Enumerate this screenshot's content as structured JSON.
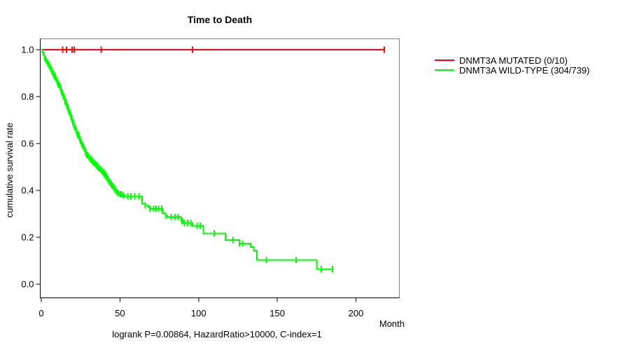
{
  "title": "Time to Death",
  "xlabel": "Month",
  "ylabel": "cumulative survival rate",
  "caption": "logrank P=0.00864, HazardRatio>10000, C-index=1",
  "colors": {
    "mutated": "#ff0000",
    "wild_type": "#00ff00",
    "axis": "#000000",
    "box": "#808080",
    "background": "#ffffff"
  },
  "legend": [
    {
      "label": "DNMT3A MUTATED (0/10)",
      "color": "#ff0000"
    },
    {
      "label": "DNMT3A WILD-TYPE (304/739)",
      "color": "#00ff00"
    }
  ],
  "chart_data": {
    "type": "line",
    "subtype": "kaplan-meier-step",
    "title": "Time to Death",
    "xlabel": "Month",
    "ylabel": "cumulative survival rate",
    "xlim": [
      0,
      227
    ],
    "ylim": [
      0,
      1.0
    ],
    "x_ticks": [
      0,
      50,
      100,
      150,
      200
    ],
    "x_tick_labels": [
      "0",
      "50",
      "100",
      "150",
      "200"
    ],
    "y_ticks": [
      0.0,
      0.2,
      0.4,
      0.6,
      0.8,
      1.0
    ],
    "y_tick_labels": [
      "0.0",
      "0.2",
      "0.4",
      "0.6",
      "0.8",
      "1.0"
    ],
    "grid": false,
    "legend_position": "right-outside",
    "series": [
      {
        "name": "DNMT3A MUTATED (0/10)",
        "color": "#ff0000",
        "events": "0/10",
        "points": [
          [
            0,
            1.0
          ],
          [
            218,
            1.0
          ]
        ],
        "censor_marks": [
          13.5,
          16,
          19.5,
          21,
          38,
          96,
          218
        ]
      },
      {
        "name": "DNMT3A WILD-TYPE (304/739)",
        "color": "#00ff00",
        "events": "304/739",
        "points": [
          [
            0,
            1
          ],
          [
            0.7,
            0.988
          ],
          [
            1.4,
            0.978
          ],
          [
            2,
            0.968
          ],
          [
            2.6,
            0.96
          ],
          [
            3.2,
            0.952
          ],
          [
            3.8,
            0.944
          ],
          [
            4.4,
            0.937
          ],
          [
            5,
            0.93
          ],
          [
            5.6,
            0.922
          ],
          [
            6.2,
            0.914
          ],
          [
            6.8,
            0.906
          ],
          [
            7.4,
            0.898
          ],
          [
            8,
            0.89
          ],
          [
            8.6,
            0.882
          ],
          [
            9.2,
            0.874
          ],
          [
            9.8,
            0.866
          ],
          [
            10.4,
            0.858
          ],
          [
            11,
            0.849
          ],
          [
            11.6,
            0.84
          ],
          [
            12.2,
            0.83
          ],
          [
            12.8,
            0.82
          ],
          [
            13.4,
            0.81
          ],
          [
            14,
            0.8
          ],
          [
            14.6,
            0.789
          ],
          [
            15.2,
            0.778
          ],
          [
            15.8,
            0.767
          ],
          [
            16.4,
            0.756
          ],
          [
            17,
            0.745
          ],
          [
            17.6,
            0.734
          ],
          [
            18.2,
            0.723
          ],
          [
            18.8,
            0.712
          ],
          [
            19.4,
            0.701
          ],
          [
            20,
            0.69
          ],
          [
            20.6,
            0.679
          ],
          [
            21.2,
            0.668
          ],
          [
            21.8,
            0.658
          ],
          [
            22.4,
            0.648
          ],
          [
            23,
            0.638
          ],
          [
            23.6,
            0.628
          ],
          [
            24.2,
            0.619
          ],
          [
            24.8,
            0.61
          ],
          [
            25.4,
            0.601
          ],
          [
            26,
            0.592
          ],
          [
            26.6,
            0.583
          ],
          [
            27.2,
            0.574
          ],
          [
            27.8,
            0.566
          ],
          [
            28.4,
            0.558
          ],
          [
            29,
            0.551
          ],
          [
            29.6,
            0.545
          ],
          [
            30.2,
            0.54
          ],
          [
            31,
            0.534
          ],
          [
            32,
            0.527
          ],
          [
            33,
            0.52
          ],
          [
            34,
            0.513
          ],
          [
            35,
            0.506
          ],
          [
            36,
            0.499
          ],
          [
            37,
            0.492
          ],
          [
            38,
            0.485
          ],
          [
            39,
            0.478
          ],
          [
            40,
            0.47
          ],
          [
            41,
            0.459
          ],
          [
            42,
            0.448
          ],
          [
            43,
            0.438
          ],
          [
            44,
            0.428
          ],
          [
            45,
            0.419
          ],
          [
            46,
            0.41
          ],
          [
            47,
            0.402
          ],
          [
            48,
            0.394
          ],
          [
            49,
            0.388
          ],
          [
            50,
            0.384
          ],
          [
            51.5,
            0.379
          ],
          [
            53,
            0.375
          ],
          [
            64,
            0.344
          ],
          [
            66,
            0.336
          ],
          [
            68,
            0.329
          ],
          [
            69,
            0.323
          ],
          [
            77,
            0.301
          ],
          [
            79,
            0.293
          ],
          [
            80,
            0.286
          ],
          [
            89,
            0.268
          ],
          [
            90,
            0.261
          ],
          [
            96,
            0.25
          ],
          [
            103,
            0.217
          ],
          [
            117,
            0.188
          ],
          [
            126,
            0.173
          ],
          [
            133,
            0.158
          ],
          [
            135,
            0.143
          ],
          [
            137,
            0.103
          ],
          [
            175,
            0.064
          ],
          [
            185,
            0.064
          ]
        ],
        "censor_marks": [
          2,
          2.7,
          3.4,
          4,
          4.6,
          5.2,
          5.8,
          6.4,
          7,
          7.5,
          8,
          8.5,
          9,
          9.5,
          10,
          10.5,
          11,
          11.5,
          12,
          12.4,
          12.8,
          13.2,
          13.6,
          14,
          14.4,
          14.8,
          15.2,
          15.6,
          16,
          16.4,
          16.8,
          17.2,
          17.6,
          18,
          18.4,
          18.8,
          19.2,
          19.6,
          20,
          20.4,
          20.8,
          21.2,
          21.6,
          22,
          22.5,
          23,
          23.5,
          24,
          24.5,
          25,
          25.5,
          26,
          26.5,
          27,
          27.5,
          28,
          28.5,
          29,
          29.5,
          30,
          30.5,
          31,
          31.5,
          32,
          32.5,
          33,
          33.5,
          34,
          34.5,
          35,
          35.5,
          36,
          36.5,
          37,
          37.5,
          38,
          38.5,
          39,
          39.5,
          40,
          40.5,
          41,
          41.5,
          42,
          42.5,
          43,
          43.5,
          44,
          44.5,
          45,
          45.5,
          46,
          46.5,
          47,
          48,
          49,
          50,
          51,
          52,
          55,
          57,
          59.5,
          62,
          66,
          69,
          71.5,
          73,
          74.5,
          76.5,
          79,
          82.5,
          85,
          87,
          89.5,
          91,
          93,
          95,
          99,
          101,
          110,
          122,
          126,
          128,
          143,
          162,
          178,
          185
        ]
      }
    ]
  }
}
